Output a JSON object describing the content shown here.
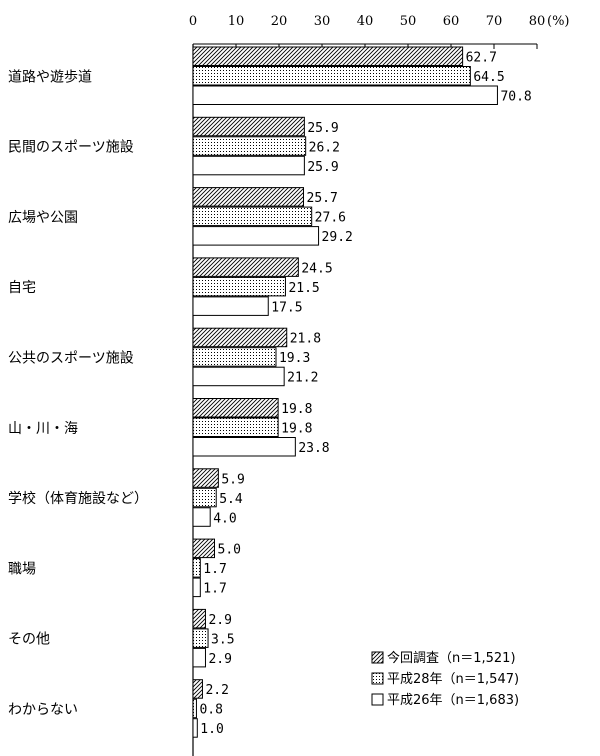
{
  "chart_data": {
    "type": "bar",
    "orientation": "horizontal",
    "title": "",
    "xlabel": "",
    "ylabel": "",
    "unit": "(%)",
    "xlim": [
      0,
      80
    ],
    "xticks": [
      0,
      10,
      20,
      30,
      40,
      50,
      60,
      70,
      80
    ],
    "grid": false,
    "legend_position": "bottom-right",
    "categories": [
      "道路や遊歩道",
      "民間のスポーツ施設",
      "広場や公園",
      "自宅",
      "公共のスポーツ施設",
      "山・川・海",
      "学校（体育施設など）",
      "職場",
      "その他",
      "わからない"
    ],
    "series": [
      {
        "name": "今回調査（n＝1,521)",
        "pattern": "hatch",
        "values": [
          62.7,
          25.9,
          25.7,
          24.5,
          21.8,
          19.8,
          5.9,
          5.0,
          2.9,
          2.2
        ]
      },
      {
        "name": "平成28年（n＝1,547)",
        "pattern": "dots",
        "values": [
          64.5,
          26.2,
          27.6,
          21.5,
          19.3,
          19.8,
          5.4,
          1.7,
          3.5,
          0.8
        ]
      },
      {
        "name": "平成26年（n＝1,683)",
        "pattern": "none",
        "values": [
          70.8,
          25.9,
          29.2,
          17.5,
          21.2,
          23.8,
          4.0,
          1.7,
          2.9,
          1.0
        ]
      }
    ]
  }
}
